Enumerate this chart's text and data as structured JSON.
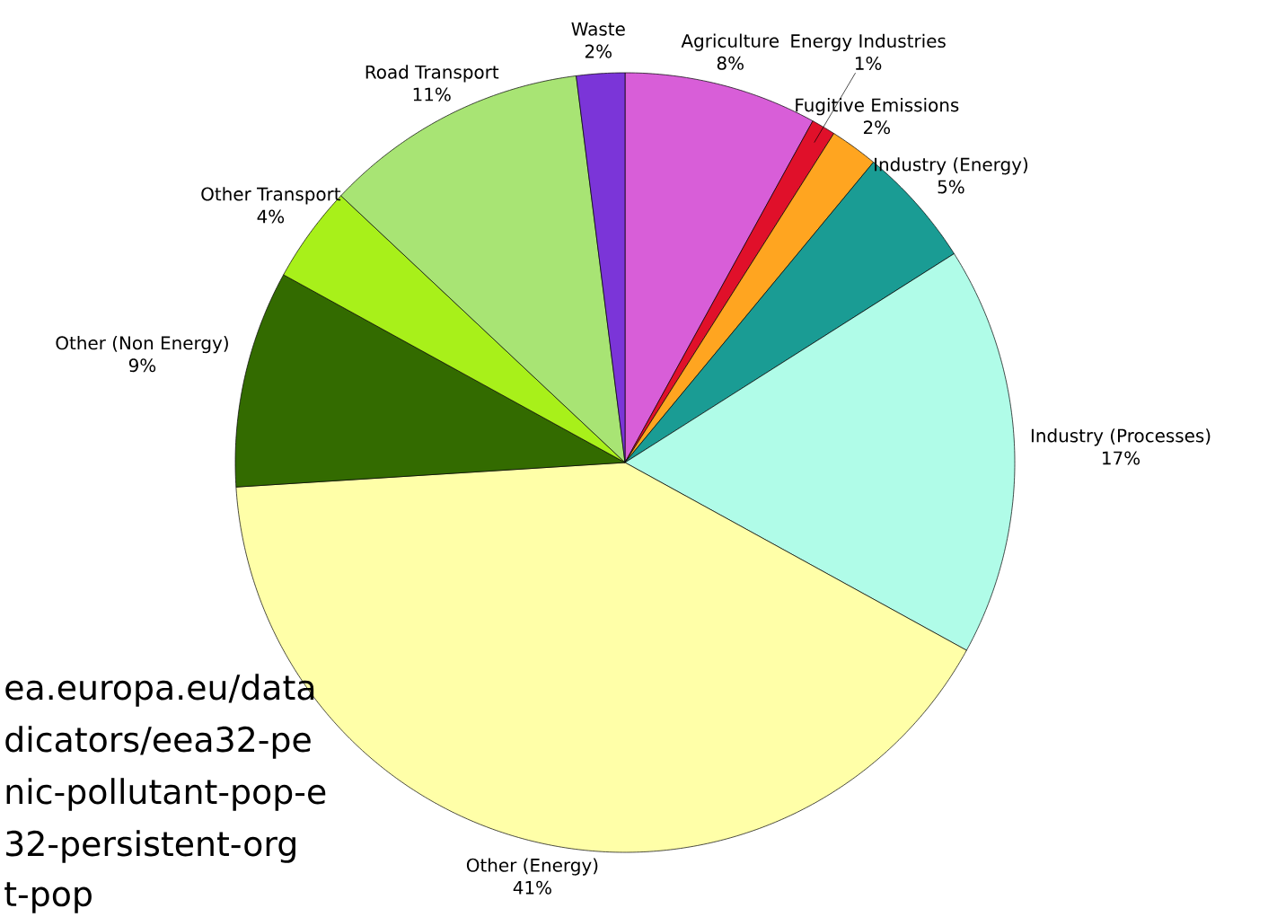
{
  "chart_data": {
    "type": "pie",
    "categories": [
      "Agriculture",
      "Energy Industries",
      "Fugitive Emissions",
      "Industry (Energy)",
      "Industry (Processes)",
      "Other (Energy)",
      "Other (Non Energy)",
      "Other Transport",
      "Road Transport",
      "Waste"
    ],
    "values": [
      8,
      1,
      2,
      5,
      17,
      41,
      9,
      4,
      11,
      2
    ],
    "value_labels": [
      "8%",
      "1%",
      "2%",
      "5%",
      "17%",
      "41%",
      "9%",
      "4%",
      "11%",
      "2%"
    ],
    "colors": [
      "#d85ed8",
      "#e0102a",
      "#ffa520",
      "#1a9c94",
      "#b0fce8",
      "#ffffa8",
      "#336b00",
      "#a8f01a",
      "#a8e474",
      "#7b35d8"
    ],
    "annotations": [
      "ea.europa.eu/data",
      "dicators/eea32-pe",
      "nic-pollutant-pop-e",
      "32-persistent-org",
      "t-pop"
    ]
  }
}
